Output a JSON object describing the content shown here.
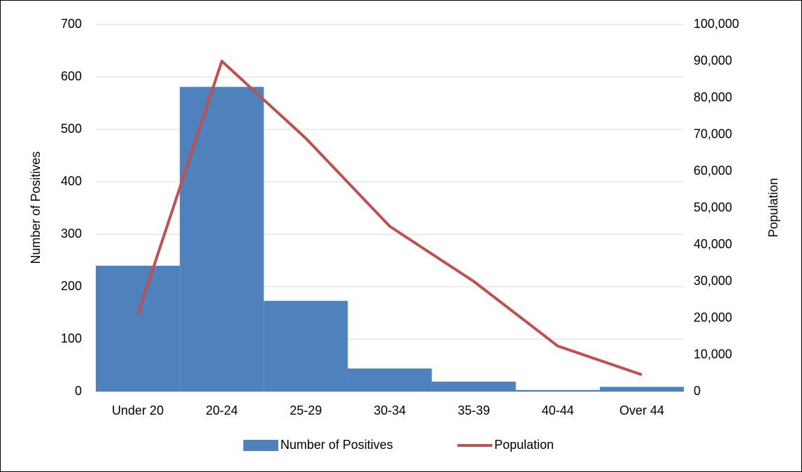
{
  "chart_data": {
    "type": "combo",
    "categories": [
      "Under 20",
      "20-24",
      "25-29",
      "30-34",
      "35-39",
      "40-44",
      "Over 44"
    ],
    "series": [
      {
        "name": "Number of Positives",
        "type": "bar",
        "color": "#4f81bd",
        "values": [
          240,
          581,
          173,
          44,
          19,
          3,
          9
        ]
      },
      {
        "name": "Population",
        "type": "line",
        "axis": "y2",
        "color": "#c0504d",
        "values": [
          21000,
          90000,
          69000,
          45000,
          30000,
          12400,
          4600
        ]
      }
    ],
    "ylabel": "Number of Positives",
    "y2label": "Population",
    "ylim": [
      0,
      700
    ],
    "yticks": [
      0,
      100,
      200,
      300,
      400,
      500,
      600,
      700
    ],
    "y2lim": [
      0,
      100000
    ],
    "y2ticks": [
      0,
      {
        "value": 10000,
        "label": "10,000"
      },
      {
        "value": 20000,
        "label": "20,000"
      },
      {
        "value": 30000,
        "label": "30,000"
      },
      {
        "value": 40000,
        "label": "40,000"
      },
      {
        "value": 50000,
        "label": "50,000"
      },
      {
        "value": 60000,
        "label": "60,000"
      },
      {
        "value": 70000,
        "label": "70,000"
      },
      {
        "value": 80000,
        "label": "80,000"
      },
      {
        "value": 90000,
        "label": "90,000"
      },
      {
        "value": 100000,
        "label": "100,000"
      }
    ],
    "grid": true,
    "legend": "bottom"
  }
}
